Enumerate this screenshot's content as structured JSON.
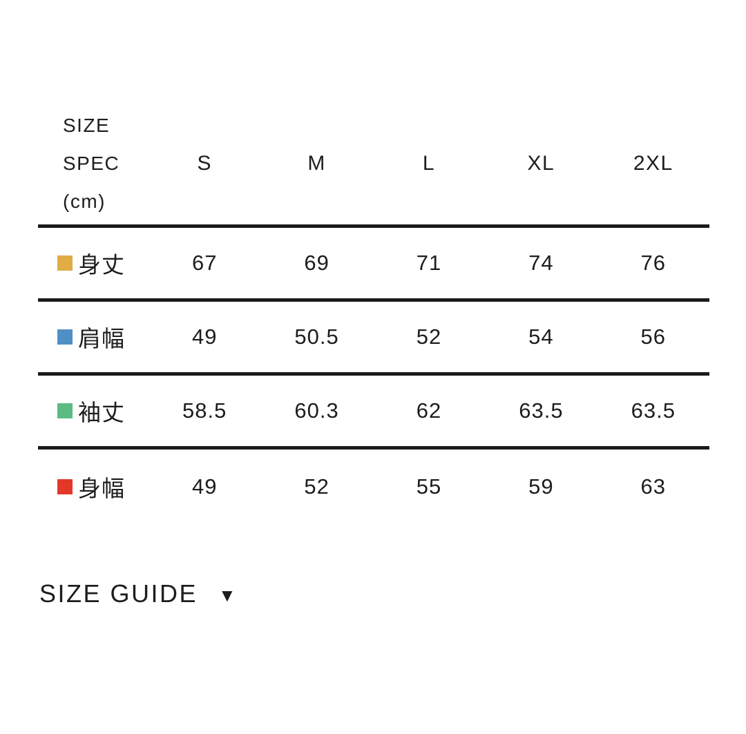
{
  "table": {
    "corner_header": [
      "SIZE",
      "SPEC",
      "(cm)"
    ],
    "columns": [
      "S",
      "M",
      "L",
      "XL",
      "2XL"
    ],
    "rows": [
      {
        "label": "身丈",
        "swatch_color": "#DFAC45",
        "values": [
          "67",
          "69",
          "71",
          "74",
          "76"
        ]
      },
      {
        "label": "肩幅",
        "swatch_color": "#4F8FC6",
        "values": [
          "49",
          "50.5",
          "52",
          "54",
          "56"
        ]
      },
      {
        "label": "袖丈",
        "swatch_color": "#5CBA83",
        "values": [
          "58.5",
          "60.3",
          "62",
          "63.5",
          "63.5"
        ]
      },
      {
        "label": "身幅",
        "swatch_color": "#E2382A",
        "values": [
          "49",
          "52",
          "55",
          "59",
          "63"
        ]
      }
    ]
  },
  "footer": {
    "size_guide_label": "SIZE GUIDE",
    "caret_icon": "▼"
  },
  "colors": {
    "text": "#1D1D1F",
    "rule": "#1B1B1B",
    "background": "#FFFFFF"
  }
}
